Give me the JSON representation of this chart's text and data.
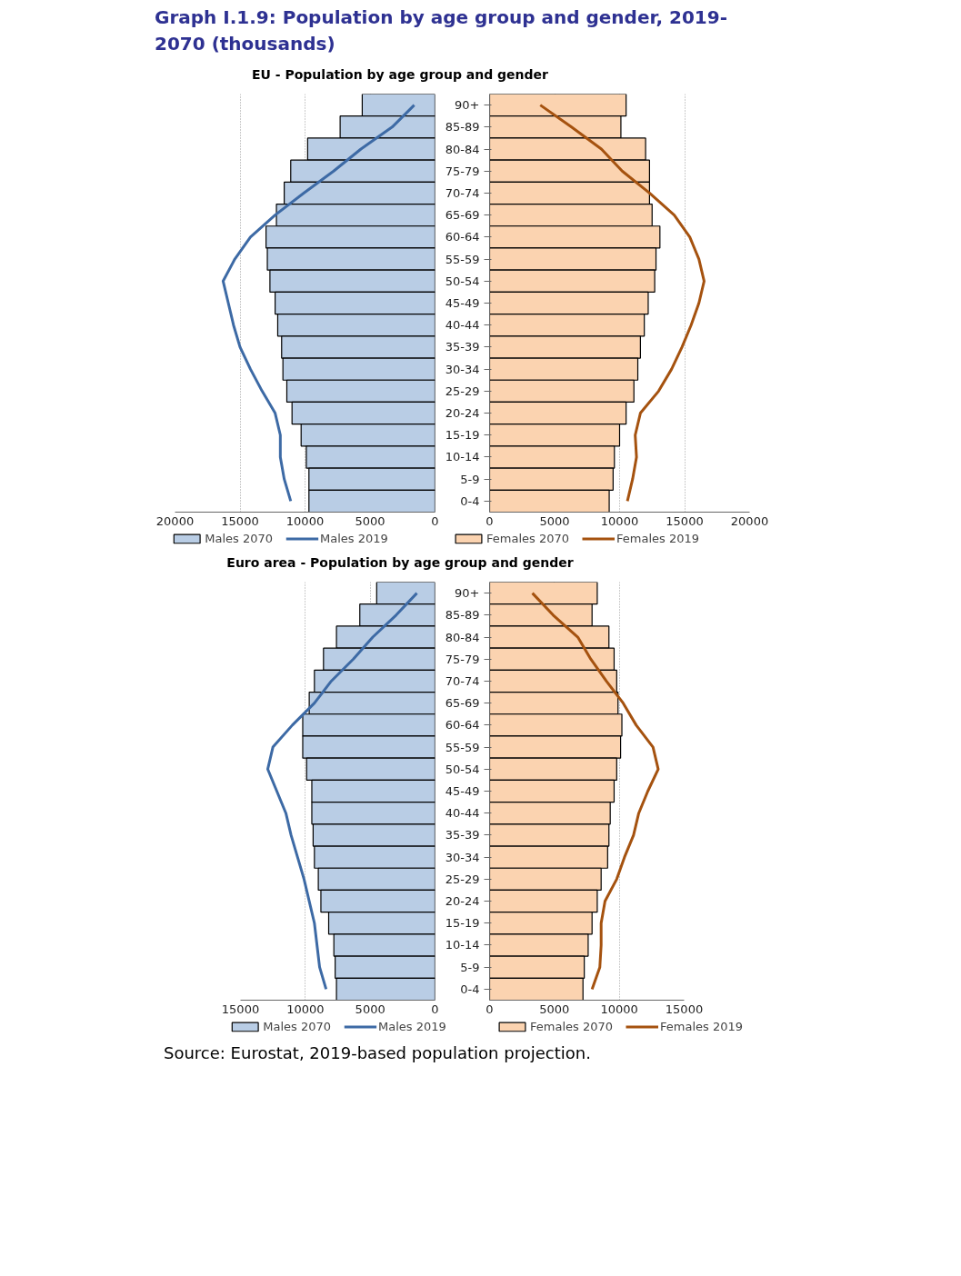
{
  "chart_data": [
    {
      "type": "bar",
      "orientation": "horizontal",
      "title": "Graph I.1.9: Population by age group and gender, 2019-2070 (thousands)",
      "subtitle": "EU - Population by age group and gender",
      "categories": [
        null,
        null,
        null,
        null,
        null,
        null,
        null,
        null,
        null,
        null,
        null,
        null,
        null,
        null,
        null,
        null,
        null,
        null,
        null
      ],
      "xlim": [
        20000,
        0
      ],
      "xticks": [
        20000,
        15000,
        10000,
        5000,
        0
      ],
      "grid": "x",
      "legend": "bottom",
      "tick_labels": "x",
      "marker": "none",
      "line_style": "solid",
      "series": [
        {
          "name": "Males 2070",
          "color": "#b9cde5",
          "values": [
            5600,
            7300,
            9800,
            11100,
            11600,
            12200,
            13000,
            12900,
            12700,
            12300,
            12100,
            11800,
            11700,
            11400,
            11000,
            10300,
            9900,
            9700,
            9700
          ]
        },
        {
          "name": "Males 2019",
          "type": "line",
          "color": "#3d6aa5",
          "values": [
            1600,
            3300,
            5700,
            7800,
            10100,
            12300,
            14200,
            15400,
            16300,
            15900,
            15500,
            15000,
            14200,
            13300,
            12300,
            11900,
            11900,
            11600,
            11100
          ]
        }
      ]
    },
    {
      "type": "bar",
      "orientation": "horizontal",
      "categories": [
        "90+",
        "85-89",
        "80-84",
        "75-79",
        "70-74",
        "65-69",
        "60-64",
        "55-59",
        "50-54",
        "45-49",
        "40-44",
        "35-39",
        "30-34",
        "25-29",
        "20-24",
        "15-19",
        "10-14",
        "5-9",
        "0-4"
      ],
      "xlim": [
        0,
        20000
      ],
      "xticks": [
        0,
        5000,
        10000,
        15000,
        20000
      ],
      "grid": "x",
      "legend": "bottom",
      "marker": "none",
      "line_style": "solid",
      "series": [
        {
          "name": "Females 2070",
          "color": "#fbd3b0",
          "values": [
            10500,
            10100,
            12000,
            12300,
            12300,
            12500,
            13100,
            12800,
            12700,
            12200,
            11900,
            11600,
            11400,
            11100,
            10500,
            10000,
            9600,
            9500,
            9200
          ]
        },
        {
          "name": "Females 2019",
          "type": "line",
          "color": "#a5520f",
          "values": [
            3900,
            6300,
            8600,
            10200,
            12300,
            14200,
            15400,
            16100,
            16500,
            16100,
            15500,
            14800,
            14000,
            13000,
            11600,
            11200,
            11300,
            11000,
            10600
          ]
        }
      ]
    },
    {
      "type": "bar",
      "orientation": "horizontal",
      "subtitle": "Euro area - Population by age group and gender",
      "categories": [
        null,
        null,
        null,
        null,
        null,
        null,
        null,
        null,
        null,
        null,
        null,
        null,
        null,
        null,
        null,
        null,
        null,
        null,
        null
      ],
      "xlim": [
        15000,
        0
      ],
      "xticks": [
        15000,
        10000,
        5000,
        0
      ],
      "grid": "x",
      "legend": "bottom",
      "tick_labels": "x",
      "marker": "none",
      "line_style": "solid",
      "series": [
        {
          "name": "Males 2070",
          "color": "#b9cde5",
          "values": [
            4500,
            5800,
            7600,
            8600,
            9300,
            9700,
            10200,
            10200,
            9900,
            9500,
            9500,
            9400,
            9300,
            9000,
            8800,
            8200,
            7800,
            7700,
            7600
          ]
        },
        {
          "name": "Males 2019",
          "type": "line",
          "color": "#3d6aa5",
          "values": [
            1400,
            3000,
            4800,
            6300,
            8000,
            9300,
            11000,
            12500,
            12900,
            12200,
            11500,
            11100,
            10600,
            10100,
            9700,
            9300,
            9100,
            8900,
            8400
          ]
        }
      ]
    },
    {
      "type": "bar",
      "orientation": "horizontal",
      "annotations": [
        "Source: Eurostat, 2019-based population projection."
      ],
      "categories": [
        "90+",
        "85-89",
        "80-84",
        "75-79",
        "70-74",
        "65-69",
        "60-64",
        "55-59",
        "50-54",
        "45-49",
        "40-44",
        "35-39",
        "30-34",
        "25-29",
        "20-24",
        "15-19",
        "10-14",
        "5-9",
        "0-4"
      ],
      "xlim": [
        0,
        15000
      ],
      "xticks": [
        0,
        5000,
        10000,
        15000
      ],
      "grid": "x",
      "legend": "bottom",
      "marker": "none",
      "line_style": "solid",
      "series": [
        {
          "name": "Females 2070",
          "color": "#fbd3b0",
          "values": [
            8300,
            7900,
            9200,
            9600,
            9800,
            9900,
            10200,
            10100,
            9800,
            9600,
            9300,
            9200,
            9100,
            8600,
            8300,
            7900,
            7600,
            7300,
            7200
          ]
        },
        {
          "name": "Females 2019",
          "type": "line",
          "color": "#a5520f",
          "values": [
            3300,
            4900,
            6800,
            7800,
            9000,
            10300,
            11300,
            12600,
            13000,
            12200,
            11500,
            11100,
            10400,
            9800,
            8900,
            8600,
            8600,
            8500,
            7900
          ]
        }
      ]
    }
  ]
}
